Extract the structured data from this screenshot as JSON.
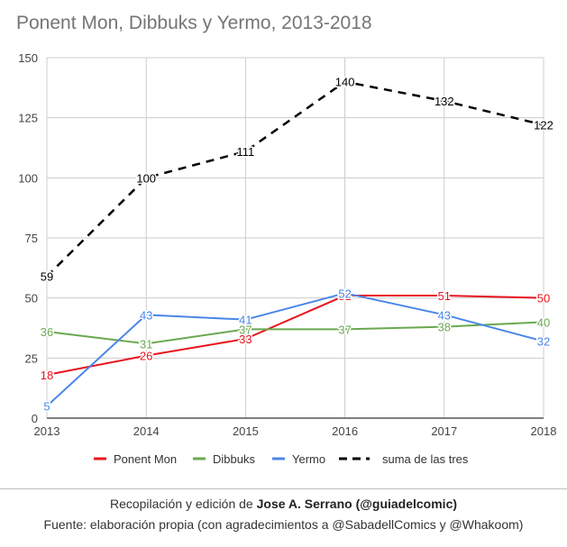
{
  "colors": {
    "ponent_mon": "#e8141e",
    "dibbuks": "#6aa84f",
    "yermo": "#4a86e8",
    "suma": "#000000",
    "grid": "#cccccc",
    "axis_text": "#444444"
  },
  "chart_data": {
    "type": "line",
    "title": "Ponent Mon, Dibbuks y Yermo, 2013-2018",
    "x": [
      "2013",
      "2014",
      "2015",
      "2016",
      "2017",
      "2018"
    ],
    "yticks": [
      "0",
      "25",
      "50",
      "75",
      "100",
      "125",
      "150"
    ],
    "ylim": [
      0,
      150
    ],
    "grid": true,
    "legend_position": "bottom",
    "series": [
      {
        "name": "Ponent Mon",
        "values": [
          18,
          26,
          33,
          51,
          51,
          50
        ],
        "color": "#e8141e",
        "dashed": false
      },
      {
        "name": "Dibbuks",
        "values": [
          36,
          31,
          37,
          37,
          38,
          40
        ],
        "color": "#6aa84f",
        "dashed": false
      },
      {
        "name": "Yermo",
        "values": [
          5,
          43,
          41,
          52,
          43,
          32
        ],
        "color": "#4a86e8",
        "dashed": false
      },
      {
        "name": "suma de las tres",
        "values": [
          59,
          100,
          111,
          140,
          132,
          122
        ],
        "color": "#000000",
        "dashed": true
      }
    ]
  },
  "footer": {
    "credit_prefix": "Recopilación y edición de ",
    "credit_name": "Jose A. Serrano (@guiadelcomic)",
    "source": "Fuente: elaboración propia (con agradecimientos a @SabadellComics y @Whakoom)"
  }
}
